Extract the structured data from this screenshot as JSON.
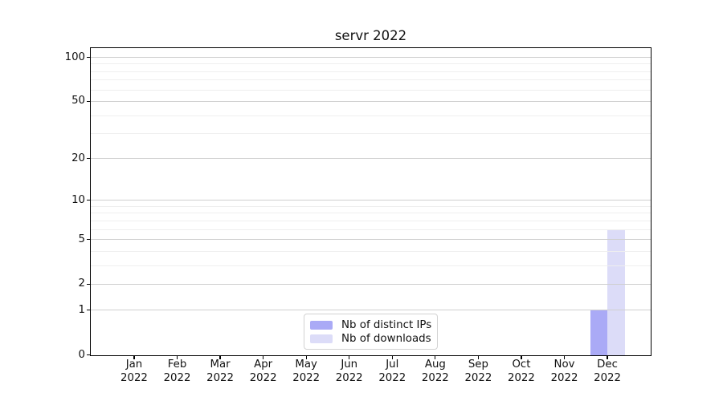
{
  "title": "servr 2022",
  "chart_data": {
    "type": "bar",
    "title": "servr 2022",
    "categories": [
      "Jan 2022",
      "Feb 2022",
      "Mar 2022",
      "Apr 2022",
      "May 2022",
      "Jun 2022",
      "Jul 2022",
      "Aug 2022",
      "Sep 2022",
      "Oct 2022",
      "Nov 2022",
      "Dec 2022"
    ],
    "series": [
      {
        "name": "Nb of distinct IPs",
        "color": "#aaaaf6",
        "values": [
          0,
          0,
          0,
          0,
          0,
          0,
          0,
          0,
          0,
          0,
          0,
          1
        ]
      },
      {
        "name": "Nb of downloads",
        "color": "#dcdcf8",
        "values": [
          0,
          0,
          0,
          0,
          0,
          0,
          0,
          0,
          0,
          0,
          0,
          6
        ]
      }
    ],
    "xlabel": "",
    "ylabel": "",
    "yscale": "log1p",
    "ylim": [
      0,
      115
    ],
    "yticks": [
      0,
      1,
      2,
      5,
      10,
      20,
      50,
      100
    ],
    "yticks_minor": [
      3,
      4,
      6,
      7,
      8,
      9,
      30,
      40,
      60,
      70,
      80,
      90
    ],
    "grid": "horizontal major+minor, drawn above bars",
    "legend_position": "lower center (inside plot)"
  },
  "icons": {},
  "colors": {
    "grid_major": "#cfcfcf",
    "grid_minor": "#efefef",
    "spine": "#000000",
    "background": "#ffffff"
  }
}
